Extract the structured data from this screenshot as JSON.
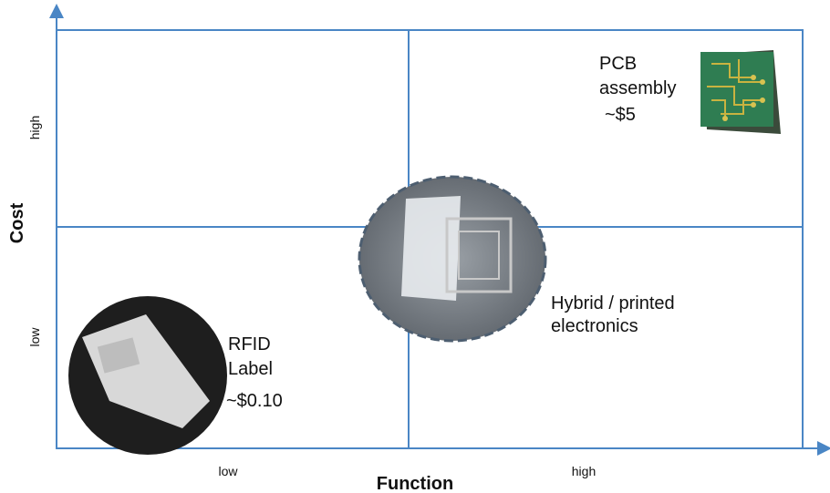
{
  "axes": {
    "x": {
      "label": "Function",
      "ticks": [
        "low",
        "high"
      ]
    },
    "y": {
      "label": "Cost",
      "ticks": [
        "high",
        "low"
      ]
    }
  },
  "items": [
    {
      "lines": [
        "PCB",
        "assembly",
        "~$5"
      ]
    },
    {
      "lines": [
        "Hybrid / printed",
        "electronics"
      ]
    },
    {
      "lines": [
        "RFID",
        "Label",
        "~$0.10"
      ]
    }
  ]
}
